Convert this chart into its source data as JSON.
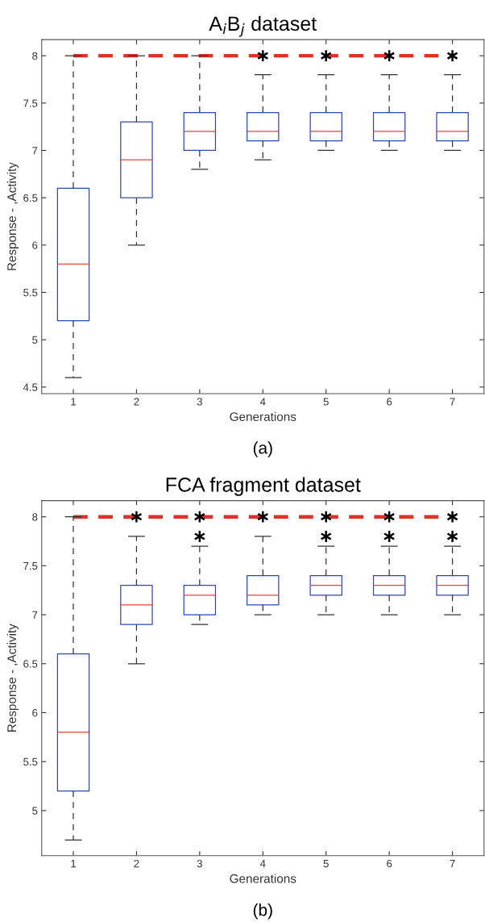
{
  "chart_data": [
    {
      "type": "box",
      "title": "A$_{i}$B$_{j}$ dataset",
      "xlabel": "Generations",
      "ylabel": "Response - ,Activity",
      "categories": [
        "1",
        "2",
        "3",
        "4",
        "5",
        "6",
        "7"
      ],
      "series": [
        {
          "color": "#3346b8",
          "boxes": [
            {
              "low": 4.6,
              "q1": 5.2,
              "median": 5.8,
              "q3": 6.6,
              "high": 8
            },
            {
              "low": 6.0,
              "q1": 6.5,
              "median": 6.9,
              "q3": 7.3,
              "high": 8
            },
            {
              "low": 6.8,
              "q1": 7.0,
              "median": 7.2,
              "q3": 7.4,
              "high": 8
            },
            {
              "low": 6.9,
              "q1": 7.1,
              "median": 7.2,
              "q3": 7.4,
              "high": 7.8,
              "outliers": [
                8
              ]
            },
            {
              "low": 7.0,
              "q1": 7.1,
              "median": 7.2,
              "q3": 7.4,
              "high": 7.8,
              "outliers": [
                8
              ]
            },
            {
              "low": 7.0,
              "q1": 7.1,
              "median": 7.2,
              "q3": 7.4,
              "high": 7.8,
              "outliers": [
                8
              ]
            },
            {
              "low": 7.0,
              "q1": 7.1,
              "median": 7.2,
              "q3": 7.4,
              "high": 7.8,
              "outliers": [
                8
              ]
            }
          ]
        }
      ],
      "ylim": [
        4.43,
        8.17
      ],
      "yticks": [
        4.5,
        5,
        5.5,
        6,
        6.5,
        7,
        7.5,
        8
      ],
      "ref_lines": [
        {
          "axis": "y",
          "value": 8,
          "color": "#e0302a",
          "line_style": "dashed"
        }
      ],
      "annotations": [
        "(a)"
      ]
    },
    {
      "type": "box",
      "title": "FCA fragment dataset",
      "xlabel": "Generations",
      "ylabel": "Response - ,Activity",
      "categories": [
        "1",
        "2",
        "3",
        "4",
        "5",
        "6",
        "7"
      ],
      "series": [
        {
          "color": "#3346b8",
          "boxes": [
            {
              "low": 4.7,
              "q1": 5.2,
              "median": 5.8,
              "q3": 6.6,
              "high": 8
            },
            {
              "low": 6.5,
              "q1": 6.9,
              "median": 7.1,
              "q3": 7.3,
              "high": 7.8,
              "outliers": [
                8
              ]
            },
            {
              "low": 6.9,
              "q1": 7.0,
              "median": 7.2,
              "q3": 7.3,
              "high": 7.7,
              "outliers": [
                7.8,
                8
              ]
            },
            {
              "low": 7.0,
              "q1": 7.1,
              "median": 7.2,
              "q3": 7.4,
              "high": 7.8,
              "outliers": [
                8
              ]
            },
            {
              "low": 7.0,
              "q1": 7.2,
              "median": 7.3,
              "q3": 7.4,
              "high": 7.7,
              "outliers": [
                7.8,
                8
              ]
            },
            {
              "low": 7.0,
              "q1": 7.2,
              "median": 7.3,
              "q3": 7.4,
              "high": 7.7,
              "outliers": [
                7.8,
                8
              ]
            },
            {
              "low": 7.0,
              "q1": 7.2,
              "median": 7.3,
              "q3": 7.4,
              "high": 7.7,
              "outliers": [
                7.8,
                8
              ]
            }
          ]
        }
      ],
      "ylim": [
        4.54,
        8.165
      ],
      "yticks": [
        5,
        5.5,
        6,
        6.5,
        7,
        7.5,
        8
      ],
      "ref_lines": [
        {
          "axis": "y",
          "value": 8,
          "color": "#e0302a",
          "line_style": "dashed"
        }
      ],
      "annotations": [
        "(b)"
      ]
    }
  ]
}
